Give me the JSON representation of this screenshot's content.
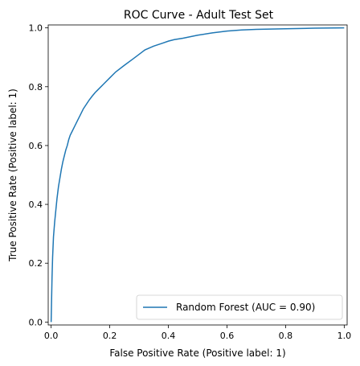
{
  "chart_data": {
    "type": "line",
    "title": "ROC Curve - Adult Test Set",
    "xlabel": "False Positive Rate (Positive label: 1)",
    "ylabel": "True Positive Rate (Positive label: 1)",
    "xlim": [
      -0.01,
      1.01
    ],
    "ylim": [
      -0.01,
      1.01
    ],
    "xticks": [
      0.0,
      0.2,
      0.4,
      0.6,
      0.8,
      1.0
    ],
    "yticks": [
      0.0,
      0.2,
      0.4,
      0.6,
      0.8,
      1.0
    ],
    "xtick_labels": [
      "0.0",
      "0.2",
      "0.4",
      "0.6",
      "0.8",
      "1.0"
    ],
    "ytick_labels": [
      "0.0",
      "0.2",
      "0.4",
      "0.6",
      "0.8",
      "1.0"
    ],
    "grid": false,
    "legend_position": "bottom-right",
    "series": [
      {
        "name": "Random Forest (AUC = 0.90)",
        "color": "#1f77b4",
        "x": [
          0.0,
          0.001,
          0.003,
          0.005,
          0.008,
          0.012,
          0.016,
          0.02,
          0.025,
          0.03,
          0.035,
          0.04,
          0.045,
          0.05,
          0.055,
          0.06,
          0.065,
          0.07,
          0.08,
          0.09,
          0.1,
          0.11,
          0.12,
          0.13,
          0.14,
          0.15,
          0.16,
          0.18,
          0.2,
          0.22,
          0.25,
          0.28,
          0.3,
          0.32,
          0.35,
          0.38,
          0.4,
          0.42,
          0.45,
          0.5,
          0.55,
          0.6,
          0.65,
          0.7,
          0.8,
          0.9,
          1.0
        ],
        "y": [
          0.0,
          0.05,
          0.15,
          0.22,
          0.29,
          0.34,
          0.38,
          0.42,
          0.46,
          0.49,
          0.52,
          0.545,
          0.565,
          0.585,
          0.6,
          0.62,
          0.635,
          0.645,
          0.665,
          0.685,
          0.705,
          0.725,
          0.74,
          0.755,
          0.768,
          0.78,
          0.79,
          0.81,
          0.83,
          0.85,
          0.873,
          0.895,
          0.91,
          0.925,
          0.938,
          0.948,
          0.955,
          0.96,
          0.965,
          0.975,
          0.983,
          0.989,
          0.993,
          0.995,
          0.997,
          0.999,
          1.0
        ]
      }
    ]
  }
}
